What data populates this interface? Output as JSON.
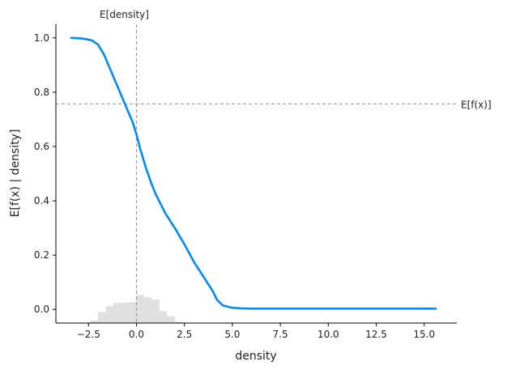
{
  "chart_data": {
    "type": "line",
    "xlabel": "density",
    "ylabel": "E[f(x) | density]",
    "xlim": [
      -4.2,
      16.7
    ],
    "ylim": [
      -0.05,
      1.05
    ],
    "xticks": [
      -2.5,
      0.0,
      2.5,
      5.0,
      7.5,
      10.0,
      12.5,
      15.0
    ],
    "xtick_labels": [
      "−2.5",
      "0.0",
      "2.5",
      "5.0",
      "7.5",
      "10.0",
      "12.5",
      "15.0"
    ],
    "yticks": [
      0.0,
      0.2,
      0.4,
      0.6,
      0.8,
      1.0
    ],
    "ytick_labels": [
      "0.0",
      "0.2",
      "0.4",
      "0.6",
      "0.8",
      "1.0"
    ],
    "grid": false,
    "line_color": "#008bfb",
    "hist_color": "#e0e0e0",
    "series": [
      {
        "x": [
          -3.4,
          -2.9,
          -2.6,
          -2.3,
          -2.0,
          -1.7,
          -1.4,
          -1.1,
          -0.8,
          -0.5,
          -0.2,
          0.0,
          0.2,
          0.5,
          0.8,
          1.0,
          1.5,
          2.0,
          2.5,
          3.0,
          3.5,
          4.0,
          4.2,
          4.5,
          5.0,
          5.5,
          6.0,
          7.0,
          8.0,
          10.0,
          12.0,
          14.0,
          15.6
        ],
        "y": [
          1.0,
          0.998,
          0.995,
          0.99,
          0.975,
          0.94,
          0.89,
          0.84,
          0.79,
          0.74,
          0.69,
          0.645,
          0.59,
          0.52,
          0.46,
          0.425,
          0.355,
          0.3,
          0.24,
          0.175,
          0.12,
          0.065,
          0.035,
          0.015,
          0.006,
          0.004,
          0.003,
          0.003,
          0.003,
          0.003,
          0.003,
          0.003,
          0.003
        ]
      }
    ],
    "histogram": {
      "bin_edges": [
        -2.4,
        -2.0,
        -1.6,
        -1.2,
        -0.8,
        -0.4,
        0.0,
        0.4,
        0.8,
        1.2,
        1.6,
        2.0,
        2.4
      ],
      "heights": [
        0.01,
        0.04,
        0.063,
        0.074,
        0.075,
        0.077,
        0.103,
        0.094,
        0.086,
        0.044,
        0.025,
        0.005
      ]
    },
    "annotations": [
      {
        "label": "E[density]",
        "orientation": "vertical",
        "value": 0.0
      },
      {
        "label": "E[f(x)]",
        "orientation": "horizontal",
        "value": 0.757
      }
    ]
  }
}
